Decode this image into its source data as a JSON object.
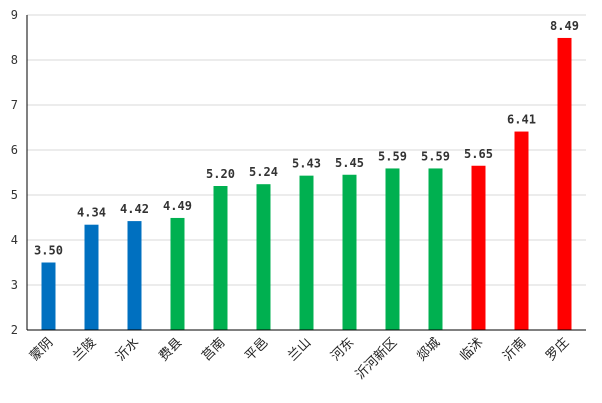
{
  "chart_data": {
    "type": "bar",
    "title": "",
    "xlabel": "",
    "ylabel": "",
    "ylim": [
      2,
      9
    ],
    "yticks": [
      2,
      3,
      4,
      5,
      6,
      7,
      8,
      9
    ],
    "grid": true,
    "legend": "none",
    "categories": [
      "蒙阴",
      "兰陵",
      "沂水",
      "费县",
      "莒南",
      "平邑",
      "兰山",
      "河东",
      "沂河新区",
      "郯城",
      "临沭",
      "沂南",
      "罗庄"
    ],
    "values": [
      3.5,
      4.34,
      4.42,
      4.49,
      5.2,
      5.24,
      5.43,
      5.45,
      5.59,
      5.59,
      5.65,
      6.41,
      8.49
    ],
    "value_labels": [
      "3.50",
      "4.34",
      "4.42",
      "4.49",
      "5.20",
      "5.24",
      "5.43",
      "5.45",
      "5.59",
      "5.59",
      "5.65",
      "6.41",
      "8.49"
    ],
    "colors": [
      "#0070c0",
      "#0070c0",
      "#0070c0",
      "#00b050",
      "#00b050",
      "#00b050",
      "#00b050",
      "#00b050",
      "#00b050",
      "#00b050",
      "#ff0000",
      "#ff0000",
      "#ff0000"
    ]
  }
}
